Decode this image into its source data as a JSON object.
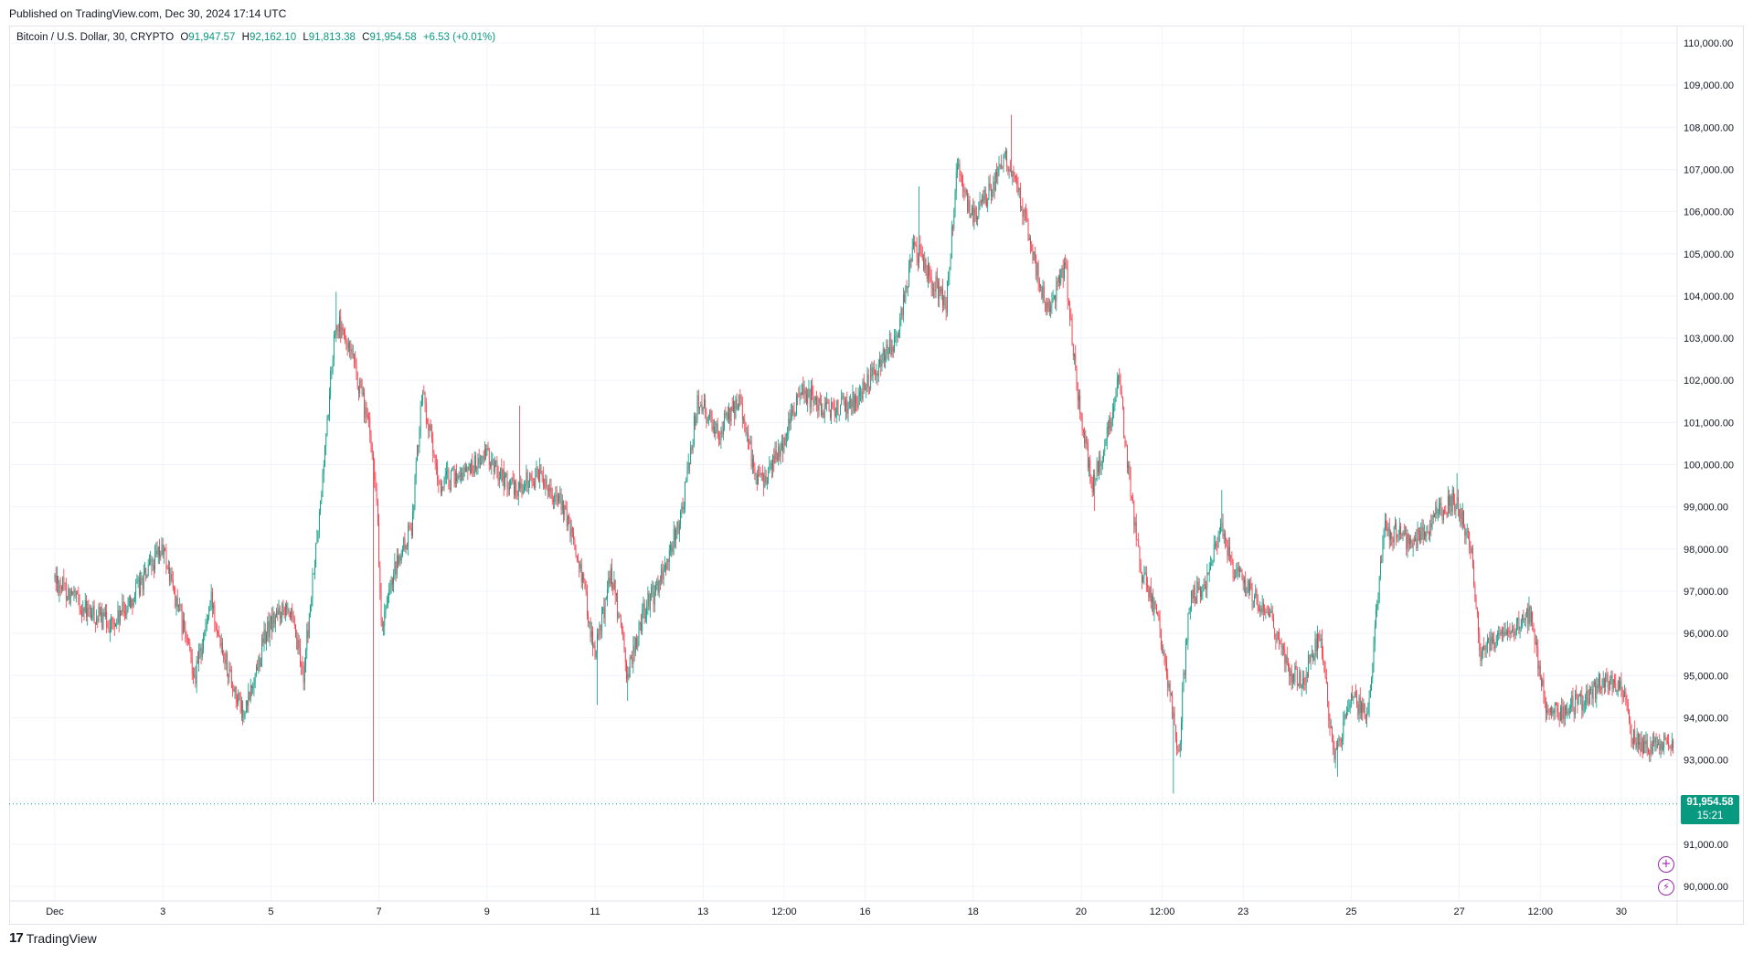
{
  "header": {
    "published_text": "Published on TradingView.com, Dec 30, 2024 17:14 UTC"
  },
  "legend": {
    "symbol": "Bitcoin / U.S. Dollar, 30, CRYPTO",
    "open_label": "O",
    "open": "91,947.57",
    "high_label": "H",
    "high": "92,162.10",
    "low_label": "L",
    "low": "91,813.38",
    "close_label": "C",
    "close": "91,954.58",
    "change": "+6.53 (+0.01%)"
  },
  "last_price": {
    "price": "91,954.58",
    "countdown": "15:21"
  },
  "footer": {
    "brand": "TradingView"
  },
  "icons": {
    "add_alert": "plus-circle-icon",
    "lightning": "lightning-icon",
    "logo": "tradingview-logo-icon"
  },
  "colors": {
    "up": "#089981",
    "down": "#f23645",
    "grid": "#f0f3fa",
    "axis_text": "#131722",
    "price_line": "#089981"
  },
  "chart_data": {
    "type": "candlestick",
    "title": "Bitcoin / U.S. Dollar, 30, CRYPTO",
    "interval": "30",
    "ylim": [
      89700,
      110300
    ],
    "y_ticks": [
      "110,000.00",
      "109,000.00",
      "108,000.00",
      "107,000.00",
      "106,000.00",
      "105,000.00",
      "104,000.00",
      "103,000.00",
      "102,000.00",
      "101,000.00",
      "100,000.00",
      "99,000.00",
      "98,000.00",
      "97,000.00",
      "96,000.00",
      "95,000.00",
      "94,000.00",
      "93,000.00",
      "92,000.00",
      "91,000.00",
      "90,000.00"
    ],
    "y_tick_values": [
      110000,
      109000,
      108000,
      107000,
      106000,
      105000,
      104000,
      103000,
      102000,
      101000,
      100000,
      99000,
      98000,
      97000,
      96000,
      95000,
      94000,
      93000,
      92000,
      91000,
      90000
    ],
    "x_ticks": [
      "Dec",
      "3",
      "5",
      "7",
      "9",
      "11",
      "13",
      "12:00",
      "16",
      "18",
      "20",
      "12:00",
      "23",
      "25",
      "27",
      "12:00",
      "30"
    ],
    "x_tick_days": [
      0,
      2,
      4,
      6,
      8,
      10,
      12,
      13.5,
      15,
      17,
      19,
      20.5,
      22,
      24,
      26,
      27.5,
      29
    ],
    "x_range_days": [
      0,
      30.4
    ],
    "last_price": 91954.58,
    "key_points": [
      {
        "day": 0.0,
        "price": 97300
      },
      {
        "day": 0.6,
        "price": 96500
      },
      {
        "day": 1.1,
        "price": 96200
      },
      {
        "day": 2.0,
        "price": 98000
      },
      {
        "day": 2.3,
        "price": 96500
      },
      {
        "day": 2.6,
        "price": 95000
      },
      {
        "day": 2.9,
        "price": 96800
      },
      {
        "day": 3.2,
        "price": 95200
      },
      {
        "day": 3.5,
        "price": 94000
      },
      {
        "day": 3.9,
        "price": 96000
      },
      {
        "day": 4.3,
        "price": 96800
      },
      {
        "day": 4.6,
        "price": 95000
      },
      {
        "day": 4.9,
        "price": 98800
      },
      {
        "day": 5.2,
        "price": 103500
      },
      {
        "day": 5.5,
        "price": 102500
      },
      {
        "day": 5.8,
        "price": 101000
      },
      {
        "day": 5.95,
        "price": 99500
      },
      {
        "day": 6.05,
        "price": 96000
      },
      {
        "day": 6.3,
        "price": 97500
      },
      {
        "day": 6.6,
        "price": 98500
      },
      {
        "day": 6.8,
        "price": 101800
      },
      {
        "day": 7.1,
        "price": 99500
      },
      {
        "day": 7.5,
        "price": 99800
      },
      {
        "day": 8.0,
        "price": 100200
      },
      {
        "day": 8.5,
        "price": 99400
      },
      {
        "day": 9.0,
        "price": 99800
      },
      {
        "day": 9.4,
        "price": 99000
      },
      {
        "day": 9.7,
        "price": 97800
      },
      {
        "day": 10.0,
        "price": 95500
      },
      {
        "day": 10.3,
        "price": 97500
      },
      {
        "day": 10.6,
        "price": 95000
      },
      {
        "day": 10.9,
        "price": 96500
      },
      {
        "day": 11.2,
        "price": 97200
      },
      {
        "day": 11.6,
        "price": 98800
      },
      {
        "day": 11.9,
        "price": 101500
      },
      {
        "day": 12.3,
        "price": 100800
      },
      {
        "day": 12.7,
        "price": 101500
      },
      {
        "day": 13.0,
        "price": 99500
      },
      {
        "day": 13.4,
        "price": 100200
      },
      {
        "day": 13.8,
        "price": 101800
      },
      {
        "day": 14.3,
        "price": 101300
      },
      {
        "day": 14.8,
        "price": 101500
      },
      {
        "day": 15.2,
        "price": 102300
      },
      {
        "day": 15.6,
        "price": 103000
      },
      {
        "day": 15.9,
        "price": 105200
      },
      {
        "day": 16.2,
        "price": 104500
      },
      {
        "day": 16.5,
        "price": 103800
      },
      {
        "day": 16.7,
        "price": 107000
      },
      {
        "day": 17.0,
        "price": 105800
      },
      {
        "day": 17.3,
        "price": 106500
      },
      {
        "day": 17.6,
        "price": 107200
      },
      {
        "day": 17.9,
        "price": 106200
      },
      {
        "day": 18.2,
        "price": 104500
      },
      {
        "day": 18.4,
        "price": 103600
      },
      {
        "day": 18.7,
        "price": 104800
      },
      {
        "day": 18.95,
        "price": 101500
      },
      {
        "day": 19.2,
        "price": 99500
      },
      {
        "day": 19.5,
        "price": 100800
      },
      {
        "day": 19.7,
        "price": 102000
      },
      {
        "day": 19.9,
        "price": 99500
      },
      {
        "day": 20.1,
        "price": 97500
      },
      {
        "day": 20.4,
        "price": 96500
      },
      {
        "day": 20.6,
        "price": 95000
      },
      {
        "day": 20.8,
        "price": 93000
      },
      {
        "day": 21.0,
        "price": 96800
      },
      {
        "day": 21.3,
        "price": 97200
      },
      {
        "day": 21.6,
        "price": 98500
      },
      {
        "day": 21.8,
        "price": 97500
      },
      {
        "day": 22.1,
        "price": 97000
      },
      {
        "day": 22.5,
        "price": 96500
      },
      {
        "day": 22.8,
        "price": 95200
      },
      {
        "day": 23.1,
        "price": 94800
      },
      {
        "day": 23.4,
        "price": 96000
      },
      {
        "day": 23.7,
        "price": 93000
      },
      {
        "day": 24.0,
        "price": 94500
      },
      {
        "day": 24.3,
        "price": 94000
      },
      {
        "day": 24.6,
        "price": 98500
      },
      {
        "day": 24.9,
        "price": 98300
      },
      {
        "day": 25.2,
        "price": 98200
      },
      {
        "day": 25.6,
        "price": 98800
      },
      {
        "day": 25.9,
        "price": 99200
      },
      {
        "day": 26.2,
        "price": 98200
      },
      {
        "day": 26.4,
        "price": 95500
      },
      {
        "day": 26.7,
        "price": 95800
      },
      {
        "day": 27.0,
        "price": 96000
      },
      {
        "day": 27.3,
        "price": 96500
      },
      {
        "day": 27.6,
        "price": 94200
      },
      {
        "day": 28.0,
        "price": 94200
      },
      {
        "day": 28.4,
        "price": 94500
      },
      {
        "day": 28.7,
        "price": 95000
      },
      {
        "day": 29.0,
        "price": 94800
      },
      {
        "day": 29.2,
        "price": 93500
      },
      {
        "day": 29.5,
        "price": 93200
      },
      {
        "day": 29.8,
        "price": 93500
      },
      {
        "day": 30.0,
        "price": 93200
      },
      {
        "day": 30.2,
        "price": 91800
      },
      {
        "day": 30.3,
        "price": 91954.58
      }
    ],
    "spikes": [
      {
        "day": 5.2,
        "high": 104100
      },
      {
        "day": 5.9,
        "low": 92000
      },
      {
        "day": 8.6,
        "high": 101400
      },
      {
        "day": 10.05,
        "low": 94300
      },
      {
        "day": 10.6,
        "low": 94400
      },
      {
        "day": 16.0,
        "high": 106600
      },
      {
        "day": 17.7,
        "high": 108300
      },
      {
        "day": 19.25,
        "low": 98900
      },
      {
        "day": 20.7,
        "low": 92200
      },
      {
        "day": 21.6,
        "high": 99400
      },
      {
        "day": 23.75,
        "low": 92600
      },
      {
        "day": 25.95,
        "high": 99800
      },
      {
        "day": 30.2,
        "low": 91400
      }
    ]
  }
}
